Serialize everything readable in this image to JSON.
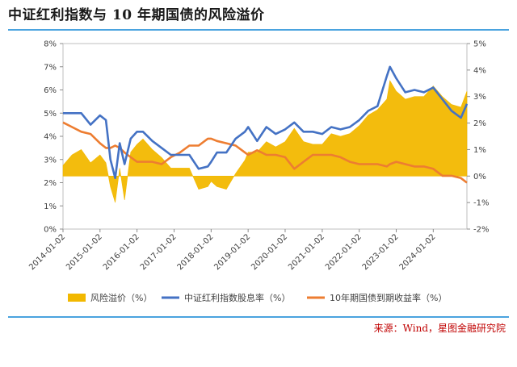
{
  "header": {
    "title": "中证红利指数与 10 年期国债的风险溢价",
    "source": "来源：Wind，星图金融研究院"
  },
  "chart_data": {
    "type": "area",
    "title": "中证红利指数与 10 年期国债的风险溢价",
    "colors": {
      "premium": "#f2b800",
      "dividend": "#4472c4",
      "bond": "#ed7d31"
    },
    "x_start": "2014-01-02",
    "x_end": "2024-11-29",
    "x_ticks": [
      "2014-01-02",
      "2015-01-02",
      "2016-01-02",
      "2017-01-02",
      "2018-01-02",
      "2019-01-02",
      "2020-01-02",
      "2021-01-02",
      "2022-01-02",
      "2023-01-02",
      "2024-01-02"
    ],
    "y_left": {
      "lim": [
        0,
        8
      ],
      "ticks": [
        "0%",
        "1%",
        "2%",
        "3%",
        "4%",
        "5%",
        "6%",
        "7%",
        "8%"
      ]
    },
    "y_right": {
      "lim": [
        -2,
        5
      ],
      "ticks": [
        "-2%",
        "-1%",
        "0%",
        "1%",
        "2%",
        "3%",
        "4%",
        "5%"
      ]
    },
    "legend_position": "bottom",
    "series": [
      {
        "name": "风险溢价（%）",
        "axis": "right",
        "style": "area",
        "x": [
          "2014-01-02",
          "2014-04-01",
          "2014-07-01",
          "2014-10-01",
          "2015-01-02",
          "2015-03-01",
          "2015-04-15",
          "2015-06-01",
          "2015-07-15",
          "2015-09-01",
          "2015-11-01",
          "2016-01-02",
          "2016-03-01",
          "2016-06-01",
          "2016-09-01",
          "2016-12-01",
          "2017-03-01",
          "2017-06-01",
          "2017-09-01",
          "2017-12-01",
          "2018-01-02",
          "2018-03-01",
          "2018-06-01",
          "2018-09-01",
          "2018-12-01",
          "2019-01-02",
          "2019-04-01",
          "2019-07-01",
          "2019-10-01",
          "2020-01-02",
          "2020-04-01",
          "2020-07-01",
          "2020-10-01",
          "2021-01-02",
          "2021-04-01",
          "2021-07-01",
          "2021-10-01",
          "2022-01-02",
          "2022-04-01",
          "2022-07-01",
          "2022-10-01",
          "2022-11-01",
          "2023-01-02",
          "2023-04-01",
          "2023-07-01",
          "2023-10-01",
          "2024-01-02",
          "2024-04-01",
          "2024-07-01",
          "2024-10-01",
          "2024-11-29"
        ],
        "values": [
          0.4,
          0.8,
          1.0,
          0.5,
          0.8,
          0.5,
          -0.4,
          -1.0,
          0.3,
          -0.9,
          0.9,
          1.2,
          1.4,
          1.0,
          0.7,
          0.3,
          0.3,
          0.3,
          -0.5,
          -0.4,
          -0.2,
          -0.4,
          -0.5,
          0.1,
          0.6,
          0.9,
          0.9,
          1.3,
          1.1,
          1.3,
          1.8,
          1.3,
          1.2,
          1.2,
          1.6,
          1.5,
          1.6,
          1.9,
          2.3,
          2.5,
          2.9,
          3.6,
          3.2,
          2.9,
          3.0,
          3.0,
          3.4,
          3.0,
          2.7,
          2.6,
          3.2
        ]
      },
      {
        "name": "中证红利指数股息率（%）",
        "axis": "left",
        "style": "line",
        "x": [
          "2014-01-02",
          "2014-04-01",
          "2014-07-01",
          "2014-10-01",
          "2015-01-02",
          "2015-03-01",
          "2015-04-15",
          "2015-06-01",
          "2015-07-15",
          "2015-09-01",
          "2015-11-01",
          "2016-01-02",
          "2016-03-01",
          "2016-06-01",
          "2016-09-01",
          "2016-12-01",
          "2017-03-01",
          "2017-06-01",
          "2017-09-01",
          "2017-12-01",
          "2018-01-02",
          "2018-03-01",
          "2018-06-01",
          "2018-09-01",
          "2018-12-01",
          "2019-01-02",
          "2019-04-01",
          "2019-07-01",
          "2019-10-01",
          "2020-01-02",
          "2020-04-01",
          "2020-07-01",
          "2020-10-01",
          "2021-01-02",
          "2021-04-01",
          "2021-07-01",
          "2021-10-01",
          "2022-01-02",
          "2022-04-01",
          "2022-07-01",
          "2022-10-01",
          "2022-11-01",
          "2023-01-02",
          "2023-04-01",
          "2023-07-01",
          "2023-10-01",
          "2024-01-02",
          "2024-04-01",
          "2024-07-01",
          "2024-10-01",
          "2024-11-29"
        ],
        "values": [
          5.0,
          5.0,
          5.0,
          4.5,
          4.9,
          4.7,
          3.0,
          2.2,
          3.7,
          2.8,
          3.9,
          4.2,
          4.2,
          3.8,
          3.5,
          3.2,
          3.2,
          3.2,
          2.6,
          2.7,
          2.9,
          3.3,
          3.3,
          3.9,
          4.2,
          4.4,
          3.8,
          4.4,
          4.1,
          4.3,
          4.6,
          4.2,
          4.2,
          4.1,
          4.4,
          4.3,
          4.4,
          4.7,
          5.1,
          5.3,
          6.6,
          7.0,
          6.5,
          5.9,
          6.0,
          5.9,
          6.1,
          5.6,
          5.1,
          4.8,
          5.4
        ]
      },
      {
        "name": "10年期国债到期收益率（%）",
        "axis": "left",
        "style": "line",
        "x": [
          "2014-01-02",
          "2014-04-01",
          "2014-07-01",
          "2014-10-01",
          "2015-01-02",
          "2015-03-01",
          "2015-04-15",
          "2015-06-01",
          "2015-07-15",
          "2015-09-01",
          "2015-11-01",
          "2016-01-02",
          "2016-03-01",
          "2016-06-01",
          "2016-09-01",
          "2016-12-01",
          "2017-03-01",
          "2017-06-01",
          "2017-09-01",
          "2017-12-01",
          "2018-01-02",
          "2018-03-01",
          "2018-06-01",
          "2018-09-01",
          "2018-12-01",
          "2019-01-02",
          "2019-04-01",
          "2019-07-01",
          "2019-10-01",
          "2020-01-02",
          "2020-04-01",
          "2020-07-01",
          "2020-10-01",
          "2021-01-02",
          "2021-04-01",
          "2021-07-01",
          "2021-10-01",
          "2022-01-02",
          "2022-04-01",
          "2022-07-01",
          "2022-10-01",
          "2022-11-01",
          "2023-01-02",
          "2023-04-01",
          "2023-07-01",
          "2023-10-01",
          "2024-01-02",
          "2024-04-01",
          "2024-07-01",
          "2024-10-01",
          "2024-11-29"
        ],
        "values": [
          4.6,
          4.4,
          4.2,
          4.1,
          3.7,
          3.5,
          3.5,
          3.6,
          3.5,
          3.3,
          3.1,
          2.9,
          2.9,
          2.9,
          2.8,
          3.1,
          3.3,
          3.6,
          3.6,
          3.9,
          3.9,
          3.8,
          3.7,
          3.6,
          3.3,
          3.2,
          3.4,
          3.2,
          3.2,
          3.1,
          2.6,
          2.9,
          3.2,
          3.2,
          3.2,
          3.1,
          2.9,
          2.8,
          2.8,
          2.8,
          2.7,
          2.8,
          2.9,
          2.8,
          2.7,
          2.7,
          2.6,
          2.3,
          2.3,
          2.2,
          2.0
        ]
      }
    ]
  }
}
